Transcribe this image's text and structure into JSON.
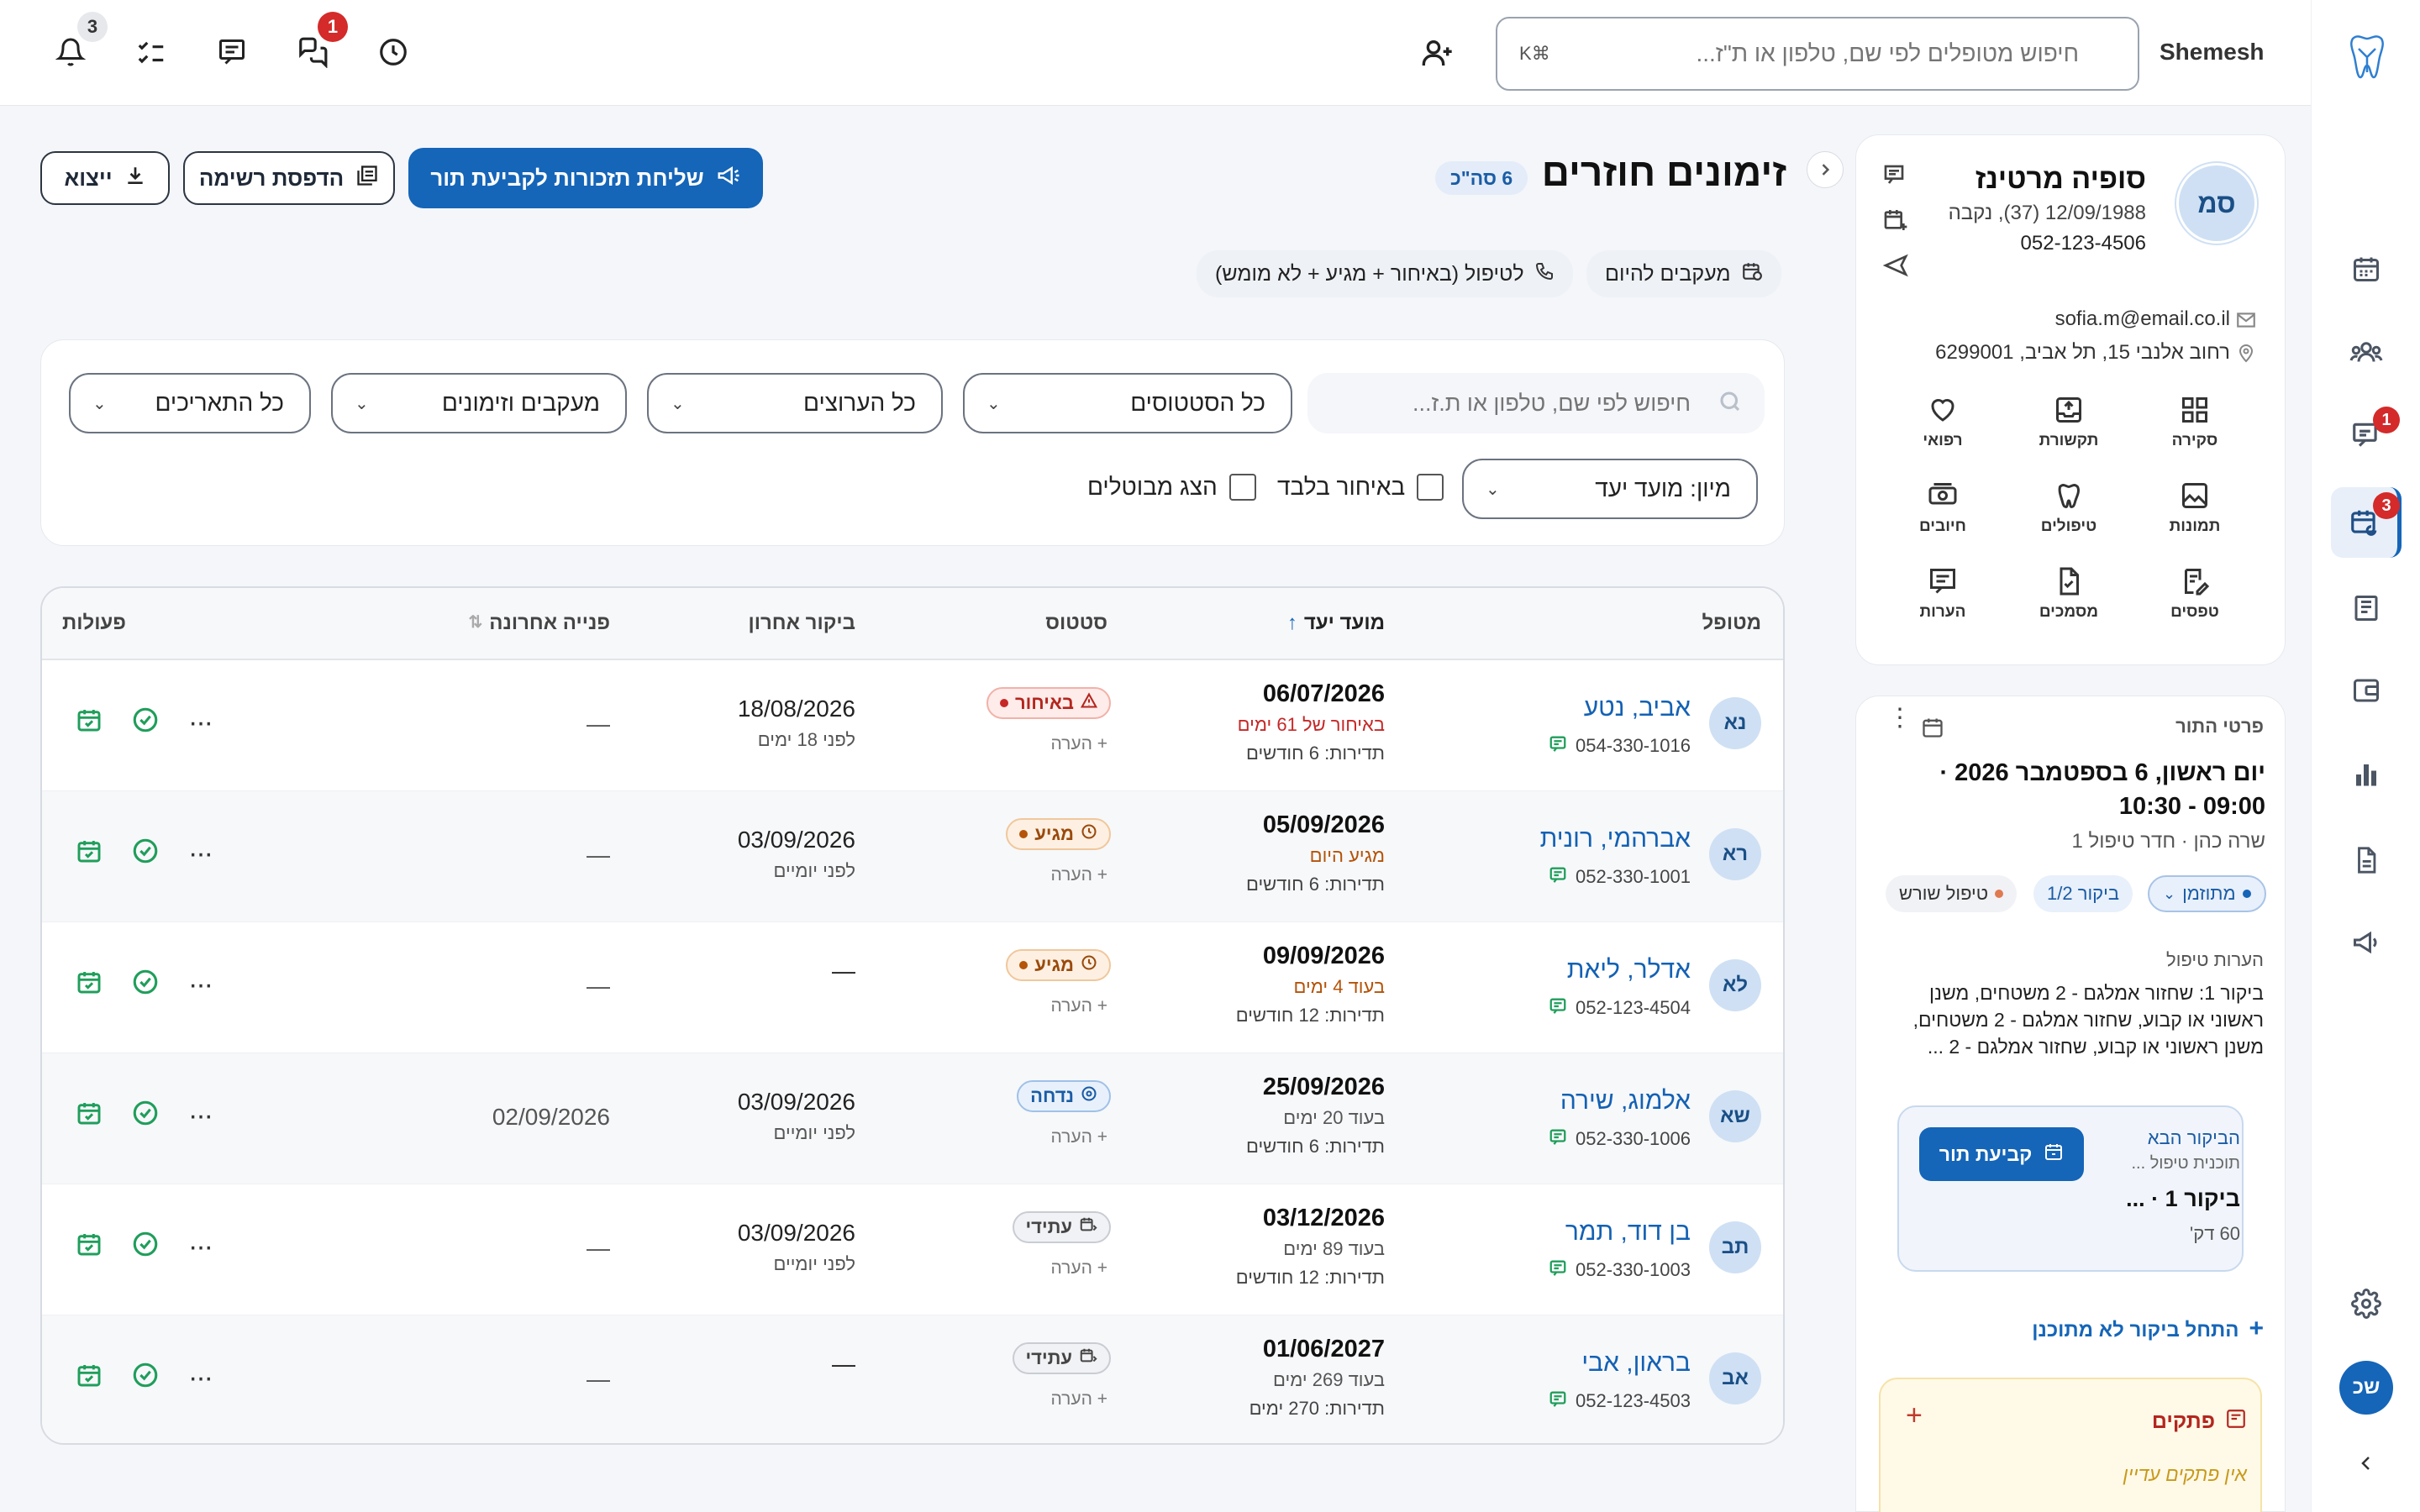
{
  "topbar": {
    "user": "Shemesh",
    "search_placeholder": "חיפוש מטופלים לפי שם, טלפון או ת\"ז...",
    "search_kbd": "⌘K",
    "notif_count": "3",
    "chat_count": "1"
  },
  "rail": {
    "calendar_badge": "1",
    "reminders_badge": "3",
    "user_initials": "שכ"
  },
  "page": {
    "title": "זימונים חוזרים",
    "count": "6 סה\"כ",
    "btn_reminders": "שליחת תזכורות לקביעת תור",
    "btn_print": "הדפסת רשימה",
    "btn_export": "ייצוא",
    "chip_today": "מעקבים להיום",
    "chip_treat": "לטיפול (באיחור + מגיע + לא מומש)"
  },
  "filters": {
    "search_placeholder": "חיפוש לפי שם, טלפון או ת.ז...",
    "status": "כל הסטטוסים",
    "channels": "כל הערוצים",
    "types": "מעקבים וזימונים",
    "dates": "כל התאריכים",
    "sort": "מיון: מועד יעד",
    "late_only": "באיחור בלבד",
    "show_cancelled": "הצג מבוטלים"
  },
  "table": {
    "headers": {
      "patient": "מטופל",
      "due": "מועד יעד",
      "status": "סטטוס",
      "last_visit": "ביקור אחרון",
      "last_contact": "פנייה אחרונה",
      "actions": "פעולות"
    },
    "note_label": "+ הערה",
    "rows": [
      {
        "initials": "נא",
        "name": "אביב, נטע",
        "phone": "054-330-1016",
        "date": "06/07/2026",
        "rel": "באיחור של 61 ימים",
        "rel_color": "#c62828",
        "freq": "תדירות: 6 חודשים",
        "status": "באיחור",
        "status_type": "late",
        "last_visit": "18/08/2026",
        "last_visit_rel": "לפני 18 ימים",
        "last_contact": "—"
      },
      {
        "initials": "רא",
        "name": "אברהמי, רונית",
        "phone": "052-330-1001",
        "date": "05/09/2026",
        "rel": "מגיע היום",
        "rel_color": "#b45309",
        "freq": "תדירות: 6 חודשים",
        "status": "מגיע",
        "status_type": "arr",
        "last_visit": "03/09/2026",
        "last_visit_rel": "לפני יומיים",
        "last_contact": "—"
      },
      {
        "initials": "לא",
        "name": "אדלר, ליאת",
        "phone": "052-123-4504",
        "date": "09/09/2026",
        "rel": "בעוד 4 ימים",
        "rel_color": "#b45309",
        "freq": "תדירות: 12 חודשים",
        "status": "מגיע",
        "status_type": "arr",
        "last_visit": "—",
        "last_visit_rel": "",
        "last_contact": "—"
      },
      {
        "initials": "שא",
        "name": "אלמוג, שירה",
        "phone": "052-330-1006",
        "date": "25/09/2026",
        "rel": "בעוד 20 ימים",
        "rel_color": "#555",
        "freq": "תדירות: 6 חודשים",
        "status": "נדחה",
        "status_type": "post",
        "last_visit": "03/09/2026",
        "last_visit_rel": "לפני יומיים",
        "last_contact": "02/09/2026"
      },
      {
        "initials": "תב",
        "name": "בן דוד, תמר",
        "phone": "052-330-1003",
        "date": "03/12/2026",
        "rel": "בעוד 89 ימים",
        "rel_color": "#555",
        "freq": "תדירות: 12 חודשים",
        "status": "עתידי",
        "status_type": "fut",
        "last_visit": "03/09/2026",
        "last_visit_rel": "לפני יומיים",
        "last_contact": "—"
      },
      {
        "initials": "אב",
        "name": "בראון, אבי",
        "phone": "052-123-4503",
        "date": "01/06/2027",
        "rel": "בעוד 269 ימים",
        "rel_color": "#555",
        "freq": "תדירות: 270 ימים",
        "status": "עתידי",
        "status_type": "fut",
        "last_visit": "—",
        "last_visit_rel": "",
        "last_contact": "—"
      }
    ]
  },
  "patient": {
    "initials": "סמ",
    "name": "סופיה מרטינז",
    "dob": "12/09/1988 (37), נקבה",
    "phone": "052-123-4506",
    "email": "sofia.m@email.co.il",
    "address": "רחוב אלנבי 15, תל אביב, 6299001",
    "grid": [
      "סקירה",
      "תקשורת",
      "רפואי",
      "תמונות",
      "טיפולים",
      "חיובים",
      "טפסים",
      "מסמכים",
      "הערות"
    ]
  },
  "appt": {
    "section": "פרטי התור",
    "when": "יום ראשון, 6 בספטמבר 2026 · 09:00 - 10:30",
    "who": "שרה כהן · חדר טיפול 1",
    "tag_status": "מתוזמן",
    "tag_visit": "ביקור 1/2",
    "tag_treatment": "טיפול שורש",
    "notes_label": "הערות טיפול",
    "notes": "ביקור 1: שחזור אמלגם - 2 משטחים, משנן ראשוני או קבוע, שחזור אמלגם - 2 משטחים, משנן ראשוני או קבוע, שחזור אמלגם - 2 ...",
    "next_label": "הביקור הבא",
    "next_plan": "תוכנית טיפול ...",
    "next_visit": "ביקור 1 · ...",
    "next_dur": "60 דק'",
    "book_btn": "קביעת תור",
    "unplanned": "התחל ביקור לא מתוכנן",
    "notes_section": "פתקים",
    "no_notes": "אין פתקים עדיין"
  },
  "colors": {
    "primary": "#1565b8",
    "danger": "#d42a2a",
    "accent_green": "#1f9e5b"
  }
}
